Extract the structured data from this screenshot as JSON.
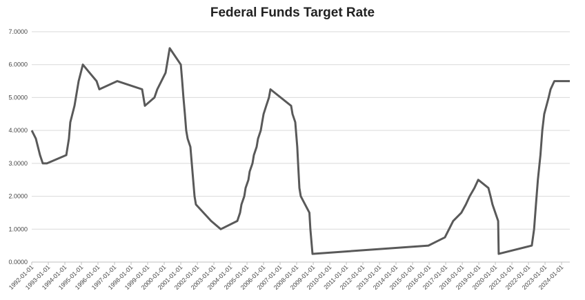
{
  "chart_data": {
    "type": "line",
    "title": "Federal Funds Target Rate",
    "xlabel": "",
    "ylabel": "",
    "ylim": [
      0,
      7
    ],
    "xlim": [
      "1992-01-01",
      "2024-07-01"
    ],
    "grid": true,
    "legend": "none",
    "line_color": "#595959",
    "yticks": [
      "0.0000",
      "1.0000",
      "2.0000",
      "3.0000",
      "4.0000",
      "5.0000",
      "6.0000",
      "7.0000"
    ],
    "xticks": [
      "1992-01-01",
      "1993-01-01",
      "1994-01-01",
      "1995-01-01",
      "1996-01-01",
      "1997-01-01",
      "1998-01-01",
      "1999-01-01",
      "2000-01-01",
      "2001-01-01",
      "2002-01-01",
      "2003-01-01",
      "2004-01-01",
      "2005-01-01",
      "2006-01-01",
      "2007-01-01",
      "2008-01-01",
      "2009-01-01",
      "2010-01-01",
      "2011-01-01",
      "2012-01-01",
      "2013-01-01",
      "2014-01-01",
      "2015-01-01",
      "2016-01-01",
      "2017-01-01",
      "2018-01-01",
      "2019-01-01",
      "2020-01-01",
      "2021-01-01",
      "2022-01-01",
      "2023-01-01",
      "2024-01-01"
    ],
    "series": [
      {
        "x": [
          "1992-01-01",
          "1992-04-01",
          "1992-07-01",
          "1992-09-01",
          "1992-12-01",
          "1994-02-01",
          "1994-04-01",
          "1994-05-01",
          "1994-08-01",
          "1994-11-01",
          "1995-02-01",
          "1995-07-01",
          "1995-12-01",
          "1996-02-01",
          "1997-03-01",
          "1998-09-01",
          "1998-10-01",
          "1998-11-01",
          "1999-06-01",
          "1999-08-01",
          "1999-11-01",
          "2000-02-01",
          "2000-03-01",
          "2000-05-01",
          "2001-01-01",
          "2001-02-01",
          "2001-03-01",
          "2001-04-01",
          "2001-05-01",
          "2001-06-01",
          "2001-08-01",
          "2001-09-01",
          "2001-10-01",
          "2001-11-01",
          "2001-12-01",
          "2002-11-01",
          "2003-06-01",
          "2004-06-01",
          "2004-08-01",
          "2004-09-01",
          "2004-11-01",
          "2004-12-01",
          "2005-02-01",
          "2005-03-01",
          "2005-05-01",
          "2005-06-01",
          "2005-08-01",
          "2005-09-01",
          "2005-11-01",
          "2005-12-01",
          "2006-01-01",
          "2006-03-01",
          "2006-05-01",
          "2006-06-01",
          "2007-09-01",
          "2007-10-01",
          "2007-12-01",
          "2008-01-15",
          "2008-02-01",
          "2008-03-01",
          "2008-04-01",
          "2008-10-08",
          "2008-10-29",
          "2008-12-16",
          "2015-12-16",
          "2016-12-14",
          "2017-03-15",
          "2017-06-14",
          "2017-12-13",
          "2018-03-21",
          "2018-06-13",
          "2018-09-26",
          "2018-12-19",
          "2019-08-01",
          "2019-09-18",
          "2019-10-30",
          "2020-03-03",
          "2020-03-15",
          "2022-03-16",
          "2022-05-04",
          "2022-06-15",
          "2022-07-27",
          "2022-09-21",
          "2022-11-02",
          "2022-12-14",
          "2023-02-01",
          "2023-03-22",
          "2023-05-03",
          "2023-07-26",
          "2024-07-01"
        ],
        "values": [
          4.0,
          3.75,
          3.25,
          3.0,
          3.0,
          3.25,
          3.75,
          4.25,
          4.75,
          5.5,
          6.0,
          5.75,
          5.5,
          5.25,
          5.5,
          5.25,
          5.0,
          4.75,
          5.0,
          5.25,
          5.5,
          5.75,
          6.0,
          6.5,
          6.0,
          5.5,
          5.0,
          4.5,
          4.0,
          3.75,
          3.5,
          3.0,
          2.5,
          2.0,
          1.75,
          1.25,
          1.0,
          1.25,
          1.5,
          1.75,
          2.0,
          2.25,
          2.5,
          2.75,
          3.0,
          3.25,
          3.5,
          3.75,
          4.0,
          4.25,
          4.5,
          4.75,
          5.0,
          5.25,
          4.75,
          4.5,
          4.25,
          3.5,
          3.0,
          2.25,
          2.0,
          1.5,
          1.0,
          0.25,
          0.5,
          0.75,
          1.0,
          1.25,
          1.5,
          1.75,
          2.0,
          2.25,
          2.5,
          2.25,
          2.0,
          1.75,
          1.25,
          0.25,
          0.5,
          1.0,
          1.75,
          2.5,
          3.25,
          4.0,
          4.5,
          4.75,
          5.0,
          5.25,
          5.5,
          5.5
        ]
      }
    ]
  }
}
